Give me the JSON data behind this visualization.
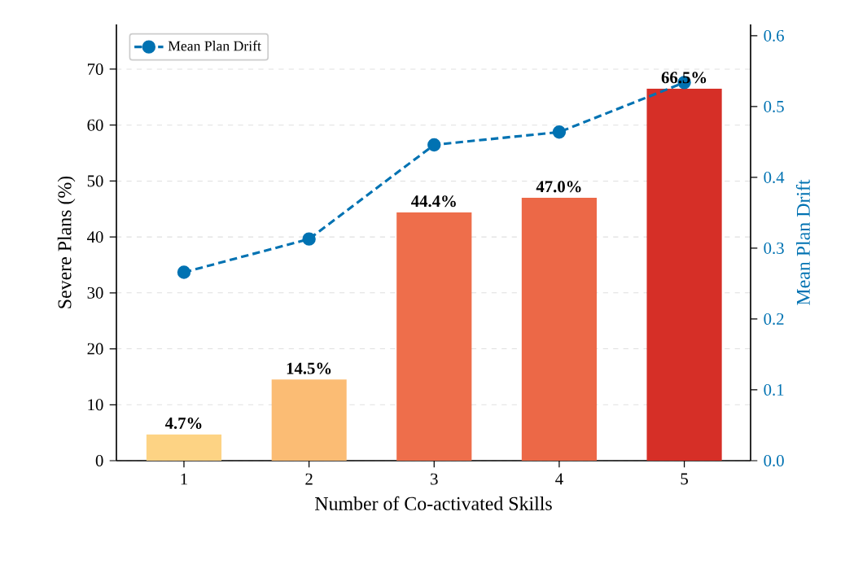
{
  "chart_data": {
    "type": "bar",
    "xlabel": "Number of Co-activated Skills",
    "ylabel": "Severe Plans (%)",
    "y2label": "Mean Plan Drift",
    "categories": [
      "1",
      "2",
      "3",
      "4",
      "5"
    ],
    "series": [
      {
        "values": [
          4.7,
          14.5,
          44.4,
          47.0,
          66.5
        ],
        "colors": [
          "#fdd384",
          "#fbbc74",
          "#ee6e4b",
          "#ec6847",
          "#d62f27"
        ],
        "value_labels": [
          "4.7%",
          "14.5%",
          "44.4%",
          "47.0%",
          "66.5%"
        ]
      },
      {
        "type": "line",
        "name": "Mean Plan Drift",
        "axis": "y2",
        "color": "#0072b2",
        "values": [
          0.266,
          0.313,
          0.446,
          0.464,
          0.534
        ]
      }
    ],
    "ylim": [
      0,
      78
    ],
    "yticks": [
      0,
      10,
      20,
      30,
      40,
      50,
      60,
      70
    ],
    "y2lim": [
      0,
      0.616
    ],
    "y2ticks": [
      {
        "value": 0,
        "label": "0.0"
      },
      0.1,
      0.2,
      0.3,
      0.4,
      0.5,
      0.6
    ],
    "grid": "y",
    "legend": "top left",
    "marker": "circle",
    "line_style": "dashed"
  }
}
